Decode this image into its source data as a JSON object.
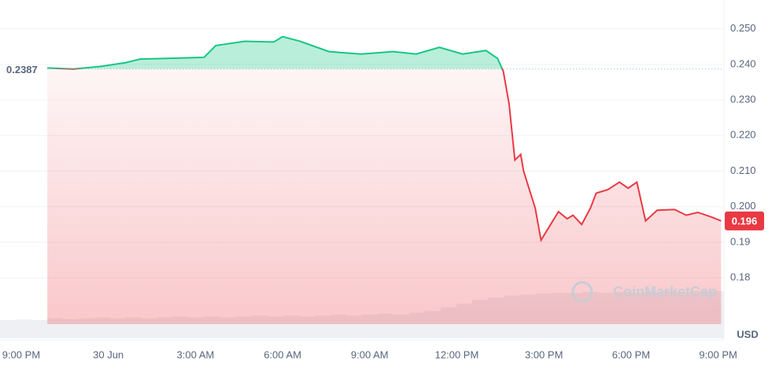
{
  "chart_data": {
    "type": "line",
    "watermark": "CoinMarketCap",
    "currency": "USD",
    "baseline": 0.2387,
    "up_color": "#16c784",
    "down_color": "#ea3943",
    "grid": true,
    "xlim": [
      -0.73,
      24.2
    ],
    "xticks": [
      {
        "value": 0,
        "label": "9:00 PM"
      },
      {
        "value": 3,
        "label": "30 Jun"
      },
      {
        "value": 6,
        "label": "3:00 AM"
      },
      {
        "value": 9,
        "label": "6:00 AM"
      },
      {
        "value": 12,
        "label": "9:00 AM"
      },
      {
        "value": 15,
        "label": "12:00 PM"
      },
      {
        "value": 18,
        "label": "3:00 PM"
      },
      {
        "value": 21,
        "label": "6:00 PM"
      },
      {
        "value": 24,
        "label": "9:00 PM"
      }
    ],
    "ylim": [
      0.167,
      0.2581
    ],
    "yticks": [
      {
        "value": 0.25,
        "label": "0.250"
      },
      {
        "value": 0.24,
        "label": "0.240"
      },
      {
        "value": 0.23,
        "label": "0.230"
      },
      {
        "value": 0.22,
        "label": "0.220"
      },
      {
        "value": 0.21,
        "label": "0.210"
      },
      {
        "value": 0.2,
        "label": "0.200"
      },
      0.19,
      0.18
    ],
    "x": [
      0.9,
      1.8,
      2.8,
      3.6,
      4.1,
      5.5,
      6.3,
      6.7,
      7.7,
      8.7,
      9.0,
      9.6,
      10.6,
      11.7,
      12.8,
      13.6,
      14.4,
      15.2,
      16.0,
      16.4,
      16.6,
      16.8,
      17.0,
      17.2,
      17.3,
      17.5,
      17.7,
      17.9,
      18.2,
      18.5,
      18.8,
      19.0,
      19.3,
      19.6,
      19.8,
      20.2,
      20.6,
      20.9,
      21.2,
      21.5,
      21.9,
      22.5,
      22.9,
      23.3,
      23.8,
      24.1
    ],
    "values": [
      0.239,
      0.2387,
      0.2395,
      0.2405,
      0.2415,
      0.2418,
      0.242,
      0.2453,
      0.2465,
      0.2463,
      0.2478,
      0.2465,
      0.2436,
      0.2429,
      0.2436,
      0.2429,
      0.2448,
      0.2429,
      0.2439,
      0.2417,
      0.2381,
      0.2289,
      0.2131,
      0.2147,
      0.21,
      0.2048,
      0.1996,
      0.1906,
      0.1946,
      0.1986,
      0.1966,
      0.1976,
      0.195,
      0.1996,
      0.2038,
      0.2048,
      0.2069,
      0.2052,
      0.2069,
      0.196,
      0.199,
      0.1992,
      0.1976,
      0.1984,
      0.197,
      0.196
    ],
    "volume": [
      20,
      21,
      20,
      22,
      21,
      22,
      23,
      22,
      23,
      22,
      23,
      24,
      23,
      24,
      23,
      24,
      25,
      24,
      25,
      24,
      25,
      26,
      25,
      26,
      27,
      26,
      28,
      30,
      34,
      38,
      42,
      45,
      47,
      48,
      49,
      50,
      50,
      51,
      50,
      51,
      50,
      51,
      52,
      51,
      52,
      52
    ]
  }
}
